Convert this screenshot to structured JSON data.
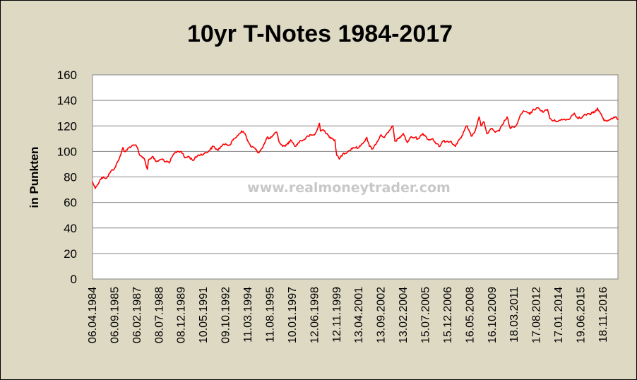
{
  "watermark": "www.realmoneytrader.com",
  "chart_data": {
    "type": "line",
    "title": "10yr T-Notes 1984-2017",
    "xlabel": "",
    "ylabel": "in Punkten",
    "ylim": [
      0,
      160
    ],
    "yticks": [
      0,
      20,
      40,
      60,
      80,
      100,
      120,
      140,
      160
    ],
    "xlim": [
      "1984-04-06",
      "2017-10-31"
    ],
    "x_tick_labels": [
      "06.04.1984",
      "06.09.1985",
      "06.02.1987",
      "08.07.1988",
      "08.12.1989",
      "10.05.1991",
      "09.10.1992",
      "11.03.1994",
      "11.08.1995",
      "10.01.1997",
      "12.06.1998",
      "12.11.1999",
      "13.04.2001",
      "13.09.2002",
      "13.02.2004",
      "15.07.2005",
      "15.12.2006",
      "16.05.2008",
      "16.10.2009",
      "18.03.2011",
      "17.08.2012",
      "17.01.2014",
      "19.06.2015",
      "18.11.2016"
    ],
    "x_tick_dates": [
      "1984-04-06",
      "1985-09-06",
      "1987-02-06",
      "1988-07-08",
      "1989-12-08",
      "1991-05-10",
      "1992-10-09",
      "1994-03-11",
      "1995-08-11",
      "1997-01-10",
      "1998-06-12",
      "1999-11-12",
      "2001-04-13",
      "2002-09-13",
      "2004-02-13",
      "2005-07-15",
      "2006-12-15",
      "2008-05-16",
      "2009-10-16",
      "2011-03-18",
      "2012-08-17",
      "2014-01-17",
      "2015-06-19",
      "2016-11-18"
    ],
    "grid": true,
    "colors": {
      "line": "#ff0000",
      "background": "#ddd9c3",
      "plot_area": "#ffffff",
      "grid": "#868686"
    },
    "series": [
      {
        "values": [
          {
            "x": "1984-04-06",
            "y": 76
          },
          {
            "x": "1984-05-15",
            "y": 73
          },
          {
            "x": "1984-06-10",
            "y": 71
          },
          {
            "x": "1984-08-01",
            "y": 74
          },
          {
            "x": "1984-10-01",
            "y": 78
          },
          {
            "x": "1984-12-15",
            "y": 80
          },
          {
            "x": "1985-03-01",
            "y": 79
          },
          {
            "x": "1985-06-01",
            "y": 84
          },
          {
            "x": "1985-09-06",
            "y": 87
          },
          {
            "x": "1985-12-01",
            "y": 93
          },
          {
            "x": "1986-02-01",
            "y": 98
          },
          {
            "x": "1986-03-15",
            "y": 103
          },
          {
            "x": "1986-04-15",
            "y": 100
          },
          {
            "x": "1986-06-01",
            "y": 101
          },
          {
            "x": "1986-08-01",
            "y": 103
          },
          {
            "x": "1986-10-01",
            "y": 104
          },
          {
            "x": "1987-01-15",
            "y": 105
          },
          {
            "x": "1987-03-01",
            "y": 102
          },
          {
            "x": "1987-04-15",
            "y": 97
          },
          {
            "x": "1987-06-01",
            "y": 96
          },
          {
            "x": "1987-08-01",
            "y": 94
          },
          {
            "x": "1987-10-10",
            "y": 86
          },
          {
            "x": "1987-11-01",
            "y": 93
          },
          {
            "x": "1988-02-01",
            "y": 96
          },
          {
            "x": "1988-05-01",
            "y": 92
          },
          {
            "x": "1988-07-08",
            "y": 93
          },
          {
            "x": "1988-10-01",
            "y": 94
          },
          {
            "x": "1988-12-01",
            "y": 92
          },
          {
            "x": "1989-03-01",
            "y": 91
          },
          {
            "x": "1989-06-15",
            "y": 98
          },
          {
            "x": "1989-09-01",
            "y": 100
          },
          {
            "x": "1989-12-08",
            "y": 100
          },
          {
            "x": "1990-03-01",
            "y": 95
          },
          {
            "x": "1990-06-01",
            "y": 96
          },
          {
            "x": "1990-09-01",
            "y": 93
          },
          {
            "x": "1991-01-01",
            "y": 97
          },
          {
            "x": "1991-05-10",
            "y": 98
          },
          {
            "x": "1991-09-01",
            "y": 100
          },
          {
            "x": "1991-12-20",
            "y": 104
          },
          {
            "x": "1992-04-01",
            "y": 101
          },
          {
            "x": "1992-07-01",
            "y": 104
          },
          {
            "x": "1992-10-09",
            "y": 106
          },
          {
            "x": "1993-01-15",
            "y": 105
          },
          {
            "x": "1993-04-01",
            "y": 109
          },
          {
            "x": "1993-07-01",
            "y": 112
          },
          {
            "x": "1993-10-15",
            "y": 116
          },
          {
            "x": "1994-01-01",
            "y": 114
          },
          {
            "x": "1994-03-11",
            "y": 108
          },
          {
            "x": "1994-05-15",
            "y": 104
          },
          {
            "x": "1994-08-01",
            "y": 103
          },
          {
            "x": "1994-11-01",
            "y": 99
          },
          {
            "x": "1995-01-01",
            "y": 101
          },
          {
            "x": "1995-04-01",
            "y": 106
          },
          {
            "x": "1995-06-01",
            "y": 111
          },
          {
            "x": "1995-08-11",
            "y": 110
          },
          {
            "x": "1995-11-01",
            "y": 113
          },
          {
            "x": "1996-01-15",
            "y": 115
          },
          {
            "x": "1996-03-01",
            "y": 108
          },
          {
            "x": "1996-06-01",
            "y": 104
          },
          {
            "x": "1996-09-01",
            "y": 105
          },
          {
            "x": "1996-12-01",
            "y": 109
          },
          {
            "x": "1997-01-10",
            "y": 107
          },
          {
            "x": "1997-04-01",
            "y": 104
          },
          {
            "x": "1997-07-01",
            "y": 108
          },
          {
            "x": "1997-10-01",
            "y": 109
          },
          {
            "x": "1998-01-15",
            "y": 112
          },
          {
            "x": "1998-06-12",
            "y": 113
          },
          {
            "x": "1998-08-15",
            "y": 117
          },
          {
            "x": "1998-10-05",
            "y": 122
          },
          {
            "x": "1998-11-01",
            "y": 116
          },
          {
            "x": "1999-01-01",
            "y": 117
          },
          {
            "x": "1999-04-01",
            "y": 114
          },
          {
            "x": "1999-07-01",
            "y": 110
          },
          {
            "x": "1999-10-01",
            "y": 109
          },
          {
            "x": "1999-11-12",
            "y": 97
          },
          {
            "x": "2000-01-15",
            "y": 94
          },
          {
            "x": "2000-04-01",
            "y": 98
          },
          {
            "x": "2000-08-01",
            "y": 100
          },
          {
            "x": "2000-12-01",
            "y": 103
          },
          {
            "x": "2001-04-13",
            "y": 103
          },
          {
            "x": "2001-07-01",
            "y": 106
          },
          {
            "x": "2001-10-15",
            "y": 111
          },
          {
            "x": "2001-12-15",
            "y": 104
          },
          {
            "x": "2002-03-01",
            "y": 102
          },
          {
            "x": "2002-06-01",
            "y": 107
          },
          {
            "x": "2002-09-13",
            "y": 113
          },
          {
            "x": "2002-12-01",
            "y": 111
          },
          {
            "x": "2003-03-01",
            "y": 115
          },
          {
            "x": "2003-06-15",
            "y": 120
          },
          {
            "x": "2003-08-01",
            "y": 108
          },
          {
            "x": "2003-11-01",
            "y": 110
          },
          {
            "x": "2004-02-13",
            "y": 114
          },
          {
            "x": "2004-05-15",
            "y": 107
          },
          {
            "x": "2004-08-01",
            "y": 111
          },
          {
            "x": "2004-11-01",
            "y": 111
          },
          {
            "x": "2005-02-01",
            "y": 110
          },
          {
            "x": "2005-05-15",
            "y": 114
          },
          {
            "x": "2005-07-15",
            "y": 112
          },
          {
            "x": "2005-10-01",
            "y": 109
          },
          {
            "x": "2006-01-01",
            "y": 110
          },
          {
            "x": "2006-03-15",
            "y": 106
          },
          {
            "x": "2006-06-15",
            "y": 104
          },
          {
            "x": "2006-09-01",
            "y": 108
          },
          {
            "x": "2006-12-15",
            "y": 108
          },
          {
            "x": "2007-03-01",
            "y": 108
          },
          {
            "x": "2007-06-15",
            "y": 104
          },
          {
            "x": "2007-09-01",
            "y": 109
          },
          {
            "x": "2007-12-01",
            "y": 113
          },
          {
            "x": "2008-01-25",
            "y": 118
          },
          {
            "x": "2008-03-15",
            "y": 120
          },
          {
            "x": "2008-06-15",
            "y": 112
          },
          {
            "x": "2008-09-01",
            "y": 115
          },
          {
            "x": "2008-12-18",
            "y": 127
          },
          {
            "x": "2009-02-01",
            "y": 120
          },
          {
            "x": "2009-04-15",
            "y": 123
          },
          {
            "x": "2009-06-15",
            "y": 114
          },
          {
            "x": "2009-10-16",
            "y": 118
          },
          {
            "x": "2010-01-01",
            "y": 115
          },
          {
            "x": "2010-04-01",
            "y": 116
          },
          {
            "x": "2010-06-15",
            "y": 121
          },
          {
            "x": "2010-10-01",
            "y": 127
          },
          {
            "x": "2010-12-15",
            "y": 118
          },
          {
            "x": "2011-03-18",
            "y": 119
          },
          {
            "x": "2011-06-01",
            "y": 122
          },
          {
            "x": "2011-08-15",
            "y": 129
          },
          {
            "x": "2011-10-01",
            "y": 131
          },
          {
            "x": "2012-01-01",
            "y": 131
          },
          {
            "x": "2012-03-15",
            "y": 129
          },
          {
            "x": "2012-05-15",
            "y": 132
          },
          {
            "x": "2012-08-17",
            "y": 134
          },
          {
            "x": "2012-11-01",
            "y": 133
          },
          {
            "x": "2013-02-01",
            "y": 131
          },
          {
            "x": "2013-05-01",
            "y": 133
          },
          {
            "x": "2013-06-25",
            "y": 126
          },
          {
            "x": "2013-09-01",
            "y": 124
          },
          {
            "x": "2014-01-17",
            "y": 124
          },
          {
            "x": "2014-05-01",
            "y": 125
          },
          {
            "x": "2014-09-01",
            "y": 125
          },
          {
            "x": "2015-01-15",
            "y": 130
          },
          {
            "x": "2015-03-15",
            "y": 127
          },
          {
            "x": "2015-06-19",
            "y": 126
          },
          {
            "x": "2015-10-01",
            "y": 129
          },
          {
            "x": "2016-01-15",
            "y": 129
          },
          {
            "x": "2016-06-15",
            "y": 132
          },
          {
            "x": "2016-07-10",
            "y": 134
          },
          {
            "x": "2016-09-15",
            "y": 130
          },
          {
            "x": "2016-11-18",
            "y": 126
          },
          {
            "x": "2016-12-15",
            "y": 124
          },
          {
            "x": "2017-03-01",
            "y": 124
          },
          {
            "x": "2017-06-01",
            "y": 126
          },
          {
            "x": "2017-09-01",
            "y": 127
          },
          {
            "x": "2017-10-31",
            "y": 125
          }
        ]
      }
    ]
  }
}
